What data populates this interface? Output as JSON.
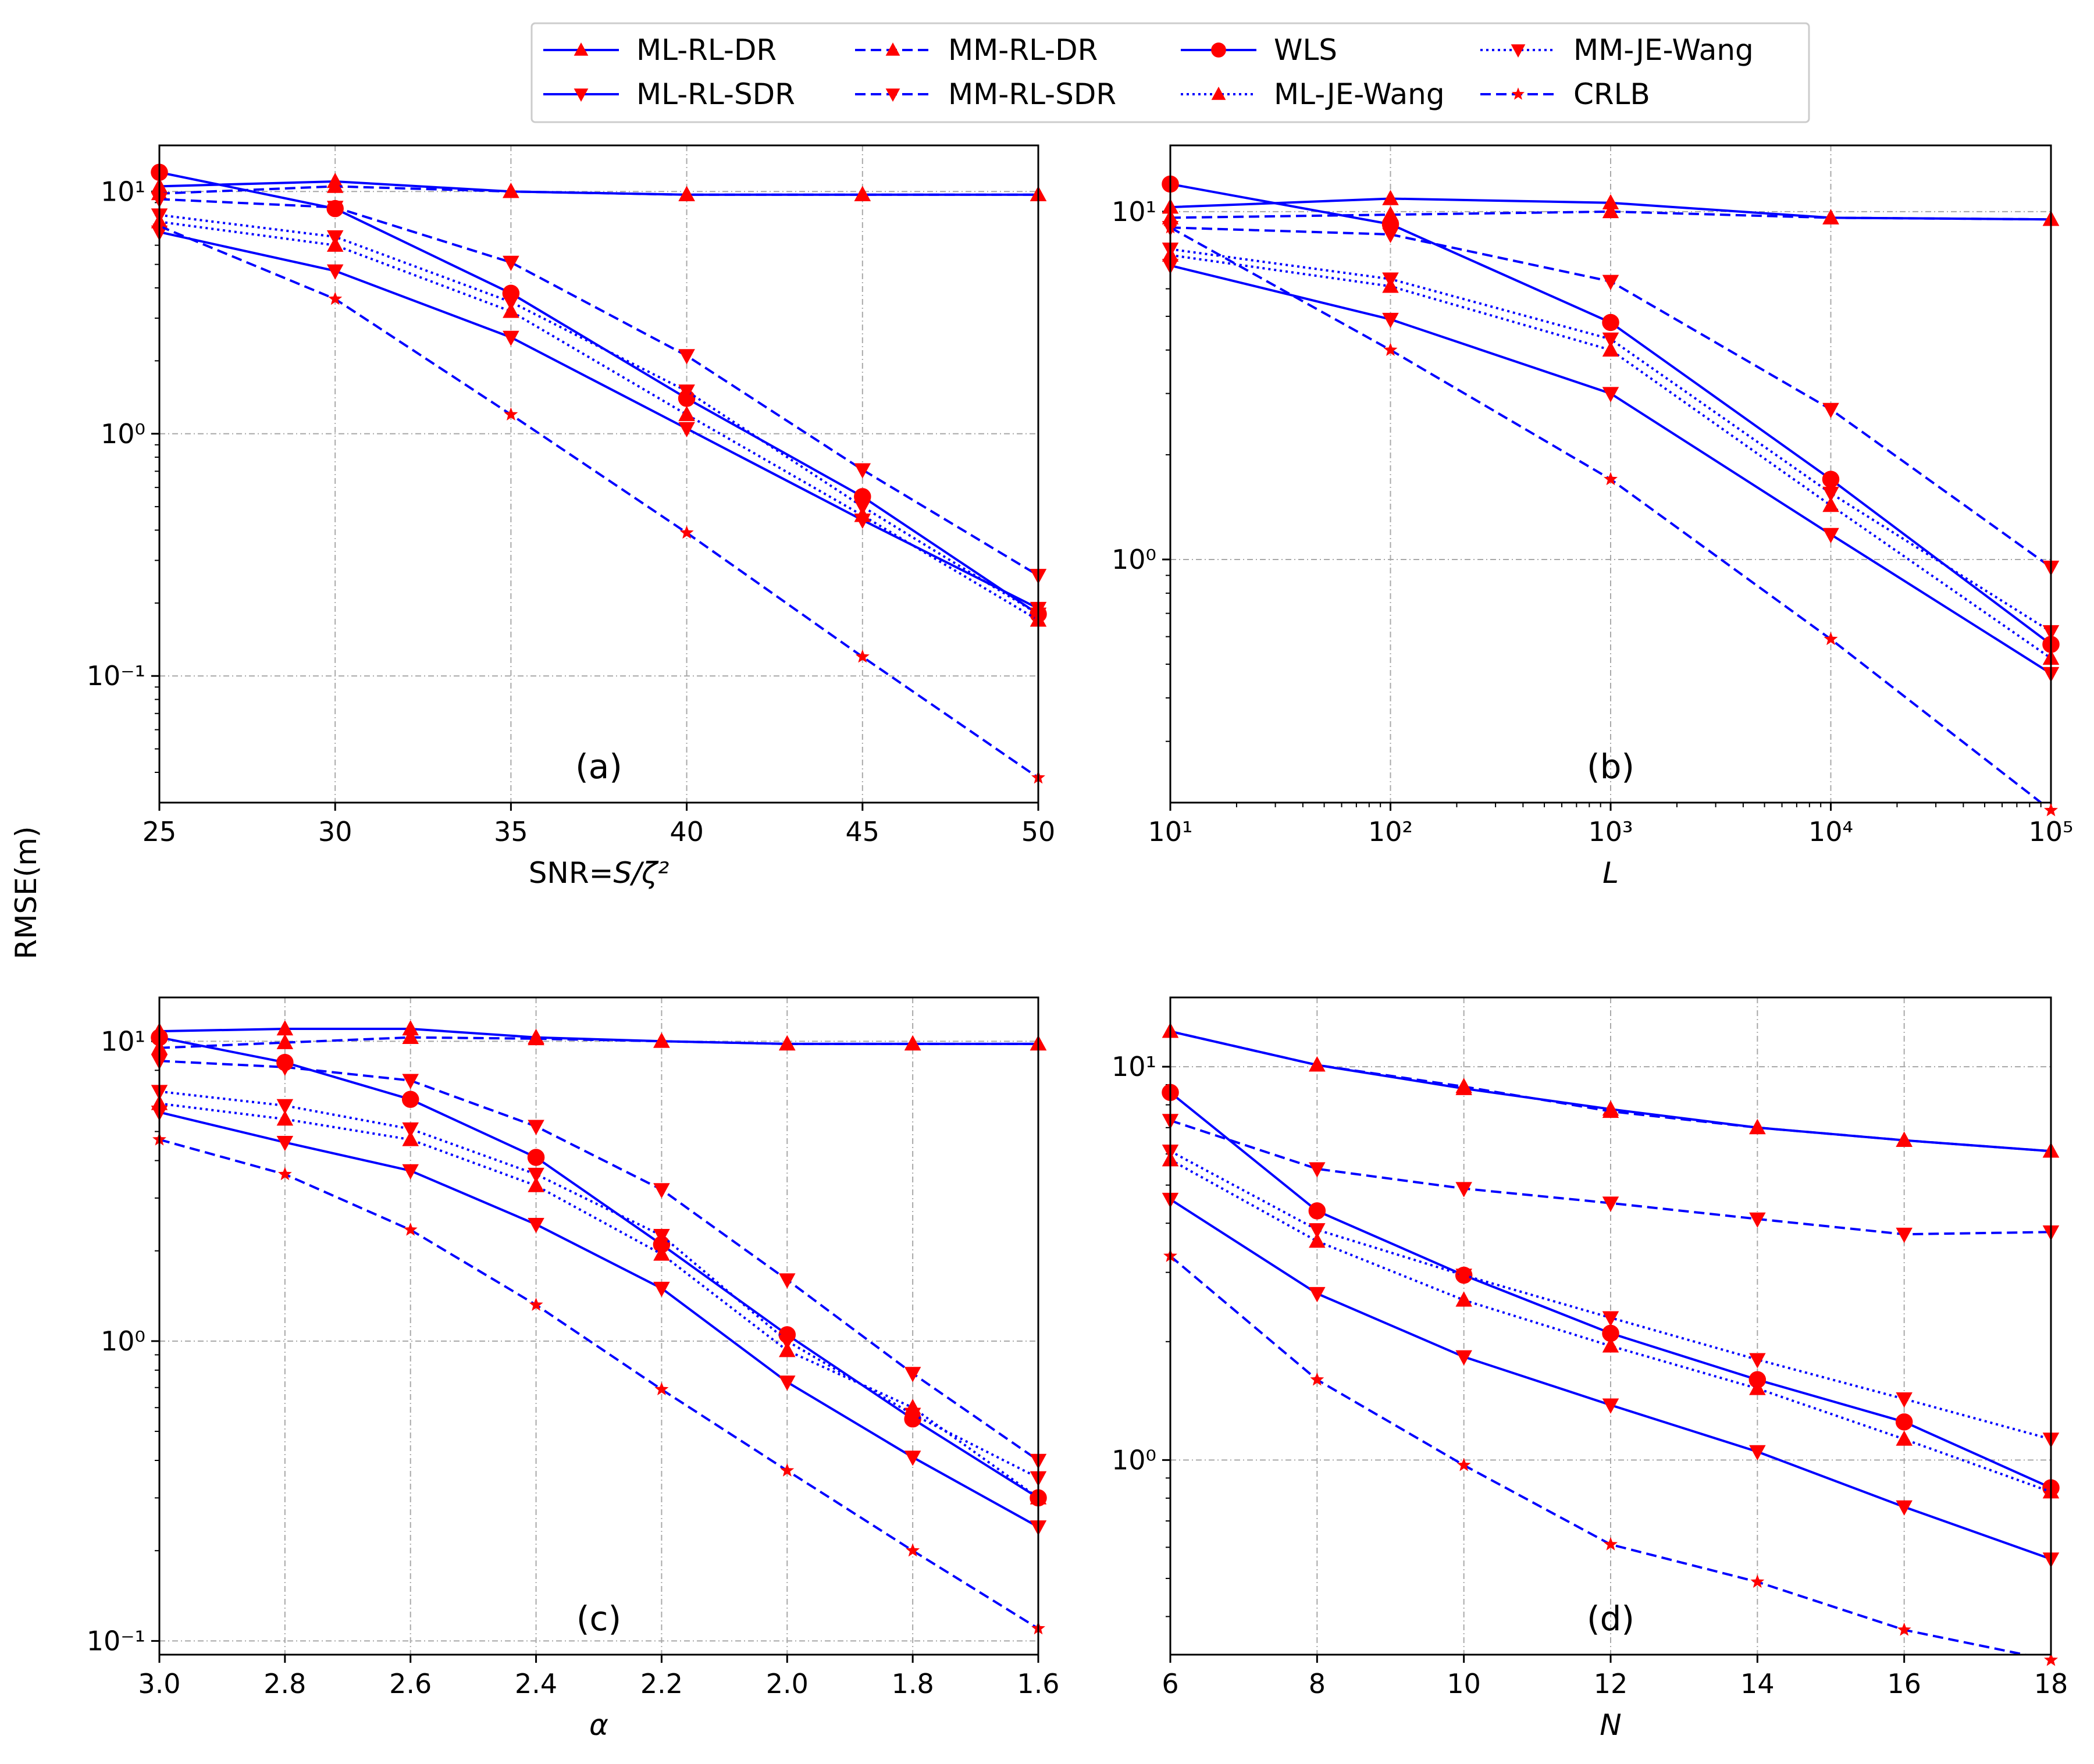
{
  "figure": {
    "ylabel": "RMSE(m)",
    "marker_color": "#ff0000",
    "line_color": "#0000ff"
  },
  "legend": [
    {
      "name": "ML-RL-DR",
      "style": "solid",
      "marker": "triangle-up"
    },
    {
      "name": "ML-RL-SDR",
      "style": "solid",
      "marker": "triangle-down"
    },
    {
      "name": "MM-RL-DR",
      "style": "dashed",
      "marker": "triangle-up"
    },
    {
      "name": "MM-RL-SDR",
      "style": "dashed",
      "marker": "triangle-down"
    },
    {
      "name": "WLS",
      "style": "solid",
      "marker": "circle"
    },
    {
      "name": "ML-JE-Wang",
      "style": "dotted",
      "marker": "triangle-up"
    },
    {
      "name": "MM-JE-Wang",
      "style": "dotted",
      "marker": "triangle-down"
    },
    {
      "name": "CRLB",
      "style": "dashed",
      "marker": "star"
    }
  ],
  "chart_data": [
    {
      "type": "line",
      "panel": "(a)",
      "xlabel": "SNR=S/ζ²",
      "xscale": "linear",
      "yscale": "log",
      "xlim": [
        25,
        50
      ],
      "ylim": [
        0.03,
        15.5
      ],
      "x": [
        25,
        30,
        35,
        40,
        45,
        50
      ],
      "xticks": [
        "25",
        "30",
        "35",
        "40",
        "45",
        "50"
      ],
      "yticks": [
        0.1,
        1,
        10
      ],
      "series": [
        {
          "name": "ML-RL-DR",
          "values": [
            10.5,
            11.0,
            10.0,
            9.7,
            9.7,
            9.7
          ]
        },
        {
          "name": "ML-RL-SDR",
          "values": [
            6.8,
            4.7,
            2.5,
            1.05,
            0.44,
            0.19
          ]
        },
        {
          "name": "MM-RL-DR",
          "values": [
            9.8,
            10.5,
            10.0,
            9.7,
            9.7,
            9.7
          ]
        },
        {
          "name": "MM-RL-SDR",
          "values": [
            9.3,
            8.6,
            5.1,
            2.1,
            0.71,
            0.26
          ]
        },
        {
          "name": "WLS",
          "values": [
            12.0,
            8.5,
            3.8,
            1.4,
            0.55,
            0.18
          ]
        },
        {
          "name": "ML-JE-Wang",
          "values": [
            7.5,
            6.0,
            3.2,
            1.2,
            0.46,
            0.17
          ]
        },
        {
          "name": "MM-JE-Wang",
          "values": [
            8.0,
            6.5,
            3.5,
            1.5,
            0.5,
            0.18
          ]
        },
        {
          "name": "CRLB",
          "values": [
            7.2,
            3.6,
            1.2,
            0.39,
            0.12,
            0.038
          ]
        }
      ]
    },
    {
      "type": "line",
      "panel": "(b)",
      "xlabel": "L",
      "xscale": "log",
      "yscale": "log",
      "xlim": [
        10,
        100000
      ],
      "ylim": [
        0.2,
        15.5
      ],
      "x": [
        10,
        100,
        1000,
        10000,
        100000
      ],
      "xticks": [
        "10^1",
        "10^2",
        "10^3",
        "10^4",
        "10^5"
      ],
      "yticks": [
        1,
        10
      ],
      "series": [
        {
          "name": "ML-RL-DR",
          "values": [
            10.3,
            10.9,
            10.6,
            9.6,
            9.5
          ]
        },
        {
          "name": "ML-RL-SDR",
          "values": [
            7.0,
            4.9,
            3.0,
            1.18,
            0.47
          ]
        },
        {
          "name": "MM-RL-DR",
          "values": [
            9.6,
            9.8,
            10.0,
            9.6,
            9.5
          ]
        },
        {
          "name": "MM-RL-SDR",
          "values": [
            9.0,
            8.6,
            6.3,
            2.7,
            0.95
          ]
        },
        {
          "name": "WLS",
          "values": [
            12.0,
            9.2,
            4.8,
            1.7,
            0.57
          ]
        },
        {
          "name": "ML-JE-Wang",
          "values": [
            7.5,
            6.1,
            4.0,
            1.43,
            0.52
          ]
        },
        {
          "name": "MM-JE-Wang",
          "values": [
            7.8,
            6.4,
            4.3,
            1.55,
            0.62
          ]
        },
        {
          "name": "CRLB",
          "values": [
            9.0,
            4.0,
            1.7,
            0.59,
            0.19
          ]
        }
      ]
    },
    {
      "type": "line",
      "panel": "(c)",
      "xlabel": "α",
      "xscale": "linear",
      "yscale": "log",
      "xlim": [
        3.0,
        1.6
      ],
      "ylim": [
        0.09,
        14.0
      ],
      "x": [
        3.0,
        2.8,
        2.6,
        2.4,
        2.2,
        2.0,
        1.8,
        1.6
      ],
      "xticks": [
        "3.0",
        "2.8",
        "2.6",
        "2.4",
        "2.2",
        "2.0",
        "1.8",
        "1.6"
      ],
      "yticks": [
        0.1,
        1,
        10
      ],
      "series": [
        {
          "name": "ML-RL-DR",
          "values": [
            10.8,
            11.0,
            11.0,
            10.3,
            10.0,
            9.8,
            9.8,
            9.8
          ]
        },
        {
          "name": "ML-RL-SDR",
          "values": [
            5.8,
            4.6,
            3.7,
            2.45,
            1.5,
            0.73,
            0.41,
            0.24
          ]
        },
        {
          "name": "MM-RL-DR",
          "values": [
            9.5,
            9.9,
            10.3,
            10.2,
            10.0,
            9.8,
            9.8,
            9.8
          ]
        },
        {
          "name": "MM-RL-SDR",
          "values": [
            8.6,
            8.2,
            7.4,
            5.2,
            3.2,
            1.6,
            0.78,
            0.4
          ]
        },
        {
          "name": "WLS",
          "values": [
            10.3,
            8.5,
            6.4,
            4.1,
            2.1,
            1.05,
            0.55,
            0.3
          ]
        },
        {
          "name": "ML-JE-Wang",
          "values": [
            6.2,
            5.5,
            4.7,
            3.3,
            1.95,
            0.93,
            0.6,
            0.3
          ]
        },
        {
          "name": "MM-JE-Wang",
          "values": [
            6.8,
            6.1,
            5.1,
            3.6,
            2.25,
            1.0,
            0.57,
            0.35
          ]
        },
        {
          "name": "CRLB",
          "values": [
            4.7,
            3.6,
            2.35,
            1.32,
            0.69,
            0.37,
            0.2,
            0.11
          ]
        }
      ]
    },
    {
      "type": "line",
      "panel": "(d)",
      "xlabel": "N",
      "xscale": "linear",
      "yscale": "log",
      "xlim": [
        6,
        18
      ],
      "ylim": [
        0.32,
        15.0
      ],
      "x": [
        6,
        8,
        10,
        12,
        14,
        16,
        18
      ],
      "xticks": [
        "6",
        "8",
        "10",
        "12",
        "14",
        "16",
        "18"
      ],
      "yticks": [
        1,
        10
      ],
      "series": [
        {
          "name": "ML-RL-DR",
          "values": [
            12.3,
            10.1,
            8.8,
            7.8,
            7.0,
            6.5,
            6.1
          ]
        },
        {
          "name": "ML-RL-SDR",
          "values": [
            4.6,
            2.65,
            1.83,
            1.38,
            1.05,
            0.76,
            0.56
          ]
        },
        {
          "name": "MM-RL-DR",
          "values": [
            12.3,
            10.1,
            8.9,
            7.7,
            7.0,
            6.5,
            6.1
          ]
        },
        {
          "name": "MM-RL-SDR",
          "values": [
            7.3,
            5.5,
            4.9,
            4.5,
            4.1,
            3.75,
            3.8
          ]
        },
        {
          "name": "WLS",
          "values": [
            8.6,
            4.3,
            2.95,
            2.1,
            1.6,
            1.25,
            0.85
          ]
        },
        {
          "name": "ML-JE-Wang",
          "values": [
            5.8,
            3.6,
            2.55,
            1.95,
            1.52,
            1.13,
            0.83
          ]
        },
        {
          "name": "MM-JE-Wang",
          "values": [
            6.1,
            3.85,
            2.95,
            2.3,
            1.8,
            1.43,
            1.13
          ]
        },
        {
          "name": "CRLB",
          "values": [
            3.3,
            1.6,
            0.97,
            0.61,
            0.49,
            0.37,
            0.31
          ]
        }
      ]
    }
  ]
}
